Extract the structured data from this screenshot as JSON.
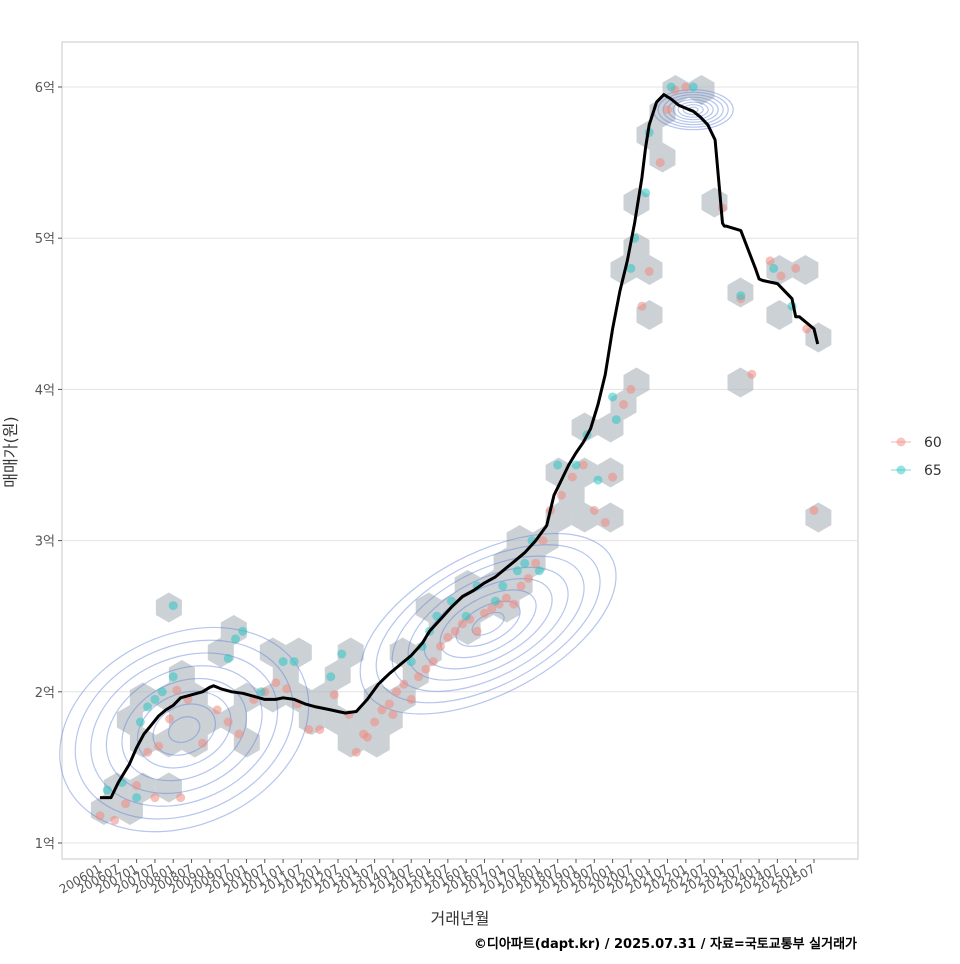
{
  "chart_data": {
    "type": "line",
    "xlabel": "거래년월",
    "ylabel": "매매가(원)",
    "caption": "©디아파트(dapt.kr) / 2025.07.31 / 자료=국토교통부 실거래가",
    "x_ticks": [
      "200601",
      "200607",
      "200701",
      "200707",
      "200801",
      "200807",
      "200901",
      "200907",
      "201001",
      "201007",
      "201101",
      "201107",
      "201201",
      "201207",
      "201301",
      "201307",
      "201401",
      "201407",
      "201501",
      "201507",
      "201601",
      "201607",
      "201701",
      "201707",
      "201801",
      "201807",
      "201901",
      "201907",
      "202001",
      "202007",
      "202101",
      "202107",
      "202201",
      "202207",
      "202301",
      "202307",
      "202401",
      "202407",
      "202501",
      "202507"
    ],
    "y_ticks": [
      "1억",
      "2억",
      "3억",
      "4억",
      "5억",
      "6억"
    ],
    "y_tick_values": [
      1,
      2,
      3,
      4,
      5,
      6
    ],
    "ylim": [
      0.89,
      6.3
    ],
    "xlim": [
      2005.3,
      2026.3
    ],
    "legend": {
      "position": "right",
      "entries": [
        {
          "label": "60",
          "color": "#F08A82"
        },
        {
          "label": "65",
          "color": "#2EC4C4"
        }
      ]
    },
    "grid": true,
    "trend_line": {
      "color": "#000000",
      "x": [
        2006.0,
        2006.3,
        2006.5,
        2006.8,
        2007.0,
        2007.2,
        2007.4,
        2007.6,
        2007.8,
        2008.0,
        2008.2,
        2008.5,
        2008.8,
        2009.0,
        2009.1,
        2009.3,
        2009.6,
        2009.9,
        2010.2,
        2010.5,
        2010.8,
        2011.0,
        2011.3,
        2011.6,
        2011.9,
        2012.1,
        2012.3,
        2012.5,
        2012.7,
        2013.0,
        2013.3,
        2013.6,
        2013.9,
        2014.2,
        2014.5,
        2014.8,
        2015.0,
        2015.3,
        2015.6,
        2015.9,
        2016.2,
        2016.5,
        2016.8,
        2017.0,
        2017.3,
        2017.6,
        2017.9,
        2018.2,
        2018.4,
        2018.6,
        2018.8,
        2019.0,
        2019.2,
        2019.4,
        2019.6,
        2019.8,
        2020.0,
        2020.2,
        2020.4,
        2020.6,
        2020.8,
        2020.9,
        2021.0,
        2021.2,
        2021.4,
        2021.6,
        2021.8,
        2022.0,
        2022.2,
        2022.4,
        2022.6,
        2022.8,
        2023.0,
        2023.05,
        2023.1,
        2023.5,
        2023.9,
        2024.0,
        2024.1,
        2024.5,
        2024.9,
        2025.0,
        2025.1,
        2025.5,
        2025.6
      ],
      "y": [
        1.3,
        1.3,
        1.4,
        1.52,
        1.63,
        1.72,
        1.78,
        1.84,
        1.88,
        1.91,
        1.96,
        1.98,
        2.0,
        2.03,
        2.04,
        2.02,
        2.0,
        1.99,
        1.97,
        1.95,
        1.95,
        1.96,
        1.95,
        1.92,
        1.9,
        1.89,
        1.88,
        1.87,
        1.86,
        1.87,
        1.95,
        2.05,
        2.12,
        2.18,
        2.24,
        2.32,
        2.4,
        2.48,
        2.56,
        2.63,
        2.67,
        2.72,
        2.76,
        2.8,
        2.86,
        2.92,
        3.0,
        3.1,
        3.3,
        3.4,
        3.5,
        3.58,
        3.65,
        3.74,
        3.9,
        4.1,
        4.4,
        4.65,
        4.85,
        5.1,
        5.4,
        5.6,
        5.75,
        5.9,
        5.95,
        5.92,
        5.88,
        5.86,
        5.84,
        5.8,
        5.75,
        5.65,
        5.1,
        5.08,
        5.08,
        5.05,
        4.8,
        4.73,
        4.72,
        4.7,
        4.6,
        4.48,
        4.48,
        4.4,
        4.3
      ]
    },
    "series": [
      {
        "name": "60",
        "color": "#F08A82",
        "points": [
          [
            2006.0,
            1.18
          ],
          [
            2006.4,
            1.15
          ],
          [
            2006.7,
            1.26
          ],
          [
            2007.0,
            1.38
          ],
          [
            2007.3,
            1.6
          ],
          [
            2007.6,
            1.64
          ],
          [
            2007.9,
            1.82
          ],
          [
            2008.1,
            2.01
          ],
          [
            2008.4,
            1.95
          ],
          [
            2008.8,
            1.66
          ],
          [
            2009.2,
            1.88
          ],
          [
            2009.5,
            1.8
          ],
          [
            2009.8,
            1.72
          ],
          [
            2010.2,
            1.95
          ],
          [
            2010.5,
            2.0
          ],
          [
            2010.8,
            2.06
          ],
          [
            2011.1,
            2.02
          ],
          [
            2011.4,
            1.92
          ],
          [
            2011.7,
            1.75
          ],
          [
            2012.0,
            1.75
          ],
          [
            2012.4,
            1.98
          ],
          [
            2012.8,
            1.85
          ],
          [
            2013.0,
            1.6
          ],
          [
            2013.3,
            1.7
          ],
          [
            2013.5,
            1.8
          ],
          [
            2013.7,
            1.88
          ],
          [
            2013.9,
            1.92
          ],
          [
            2014.1,
            2.0
          ],
          [
            2014.3,
            2.05
          ],
          [
            2014.5,
            1.95
          ],
          [
            2014.7,
            2.1
          ],
          [
            2014.9,
            2.15
          ],
          [
            2015.1,
            2.2
          ],
          [
            2015.3,
            2.3
          ],
          [
            2015.5,
            2.36
          ],
          [
            2015.7,
            2.4
          ],
          [
            2015.9,
            2.45
          ],
          [
            2016.1,
            2.48
          ],
          [
            2016.3,
            2.4
          ],
          [
            2016.5,
            2.52
          ],
          [
            2016.7,
            2.55
          ],
          [
            2016.9,
            2.58
          ],
          [
            2017.1,
            2.62
          ],
          [
            2017.3,
            2.58
          ],
          [
            2017.5,
            2.7
          ],
          [
            2017.7,
            2.75
          ],
          [
            2017.9,
            2.85
          ],
          [
            2018.1,
            3.0
          ],
          [
            2018.3,
            3.2
          ],
          [
            2018.6,
            3.3
          ],
          [
            2018.9,
            3.42
          ],
          [
            2019.2,
            3.5
          ],
          [
            2019.5,
            3.2
          ],
          [
            2019.8,
            3.12
          ],
          [
            2020.0,
            3.42
          ],
          [
            2020.3,
            3.9
          ],
          [
            2020.5,
            4.0
          ],
          [
            2020.8,
            4.55
          ],
          [
            2021.0,
            4.78
          ],
          [
            2021.3,
            5.5
          ],
          [
            2021.5,
            5.85
          ],
          [
            2021.7,
            5.98
          ],
          [
            2022.0,
            6.0
          ],
          [
            2023.0,
            5.2
          ],
          [
            2023.5,
            4.6
          ],
          [
            2023.8,
            4.1
          ],
          [
            2024.3,
            4.85
          ],
          [
            2024.6,
            4.75
          ],
          [
            2025.0,
            4.8
          ],
          [
            2025.3,
            4.4
          ],
          [
            2025.5,
            3.2
          ],
          [
            2008.2,
            1.3
          ],
          [
            2007.5,
            1.3
          ],
          [
            2013.2,
            1.72
          ],
          [
            2014.0,
            1.85
          ]
        ]
      },
      {
        "name": "65",
        "color": "#2EC4C4",
        "points": [
          [
            2006.2,
            1.35
          ],
          [
            2006.6,
            1.4
          ],
          [
            2007.0,
            1.3
          ],
          [
            2007.1,
            1.8
          ],
          [
            2007.3,
            1.9
          ],
          [
            2007.5,
            1.95
          ],
          [
            2007.7,
            2.0
          ],
          [
            2008.0,
            2.57
          ],
          [
            2008.0,
            2.1
          ],
          [
            2009.5,
            2.22
          ],
          [
            2009.7,
            2.35
          ],
          [
            2009.9,
            2.4
          ],
          [
            2010.4,
            2.0
          ],
          [
            2011.0,
            2.2
          ],
          [
            2011.3,
            2.2
          ],
          [
            2012.3,
            2.1
          ],
          [
            2012.6,
            2.25
          ],
          [
            2014.5,
            2.2
          ],
          [
            2014.8,
            2.3
          ],
          [
            2015.0,
            2.4
          ],
          [
            2015.2,
            2.5
          ],
          [
            2015.6,
            2.6
          ],
          [
            2016.0,
            2.5
          ],
          [
            2016.3,
            2.7
          ],
          [
            2016.8,
            2.6
          ],
          [
            2017.0,
            2.7
          ],
          [
            2017.4,
            2.8
          ],
          [
            2017.6,
            2.85
          ],
          [
            2017.8,
            3.0
          ],
          [
            2018.0,
            2.8
          ],
          [
            2018.5,
            3.5
          ],
          [
            2019.0,
            3.5
          ],
          [
            2019.3,
            3.7
          ],
          [
            2019.6,
            3.4
          ],
          [
            2020.0,
            3.95
          ],
          [
            2020.1,
            3.8
          ],
          [
            2020.5,
            4.8
          ],
          [
            2020.6,
            5.0
          ],
          [
            2020.9,
            5.3
          ],
          [
            2021.0,
            5.7
          ],
          [
            2021.6,
            6.0
          ],
          [
            2022.2,
            6.0
          ],
          [
            2023.5,
            4.62
          ],
          [
            2024.4,
            4.8
          ],
          [
            2024.9,
            4.55
          ]
        ]
      }
    ]
  }
}
